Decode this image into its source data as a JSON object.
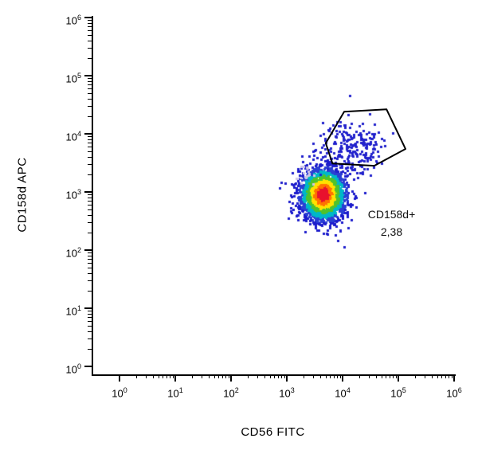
{
  "chart_data": {
    "type": "scatter",
    "subtype": "flow-cytometry-density-plot",
    "title": "",
    "xlabel": "CD56 FITC",
    "ylabel": "CD158d APC",
    "x_axis": {
      "scale": "log10",
      "min_exp": 0,
      "max_exp": 6,
      "tick_base": "10",
      "major_exponents": [
        0,
        1,
        2,
        3,
        4,
        5,
        6
      ],
      "minor_multiples": [
        2,
        3,
        4,
        5,
        6,
        7,
        8,
        9
      ]
    },
    "y_axis": {
      "scale": "log10",
      "min_exp": 0,
      "max_exp": 6,
      "tick_base": "10",
      "major_exponents": [
        0,
        1,
        2,
        3,
        4,
        5,
        6
      ],
      "minor_multiples": [
        2,
        3,
        4,
        5,
        6,
        7,
        8,
        9
      ]
    },
    "populations": [
      {
        "name": "NK-cells-main",
        "n": 2600,
        "center_log10": [
          3.62,
          2.96
        ],
        "sigma_log10": [
          0.2,
          0.22
        ],
        "color_mode": "density"
      },
      {
        "name": "CD158d-positive-cloud",
        "n": 230,
        "center_log10": [
          4.15,
          3.75
        ],
        "sigma_log10": [
          0.28,
          0.24
        ],
        "color_mode": "fixed",
        "color": "#2222cc"
      },
      {
        "name": "pale-outliers",
        "n": 16,
        "center_log10": [
          3.35,
          3.28
        ],
        "sigma_log10": [
          0.1,
          0.1
        ],
        "color_mode": "fixed",
        "color": "#cfc6e8"
      }
    ],
    "density_color_scale": [
      {
        "r": 0.55,
        "color": "#e8112d"
      },
      {
        "r": 0.85,
        "color": "#ff7300"
      },
      {
        "r": 1.15,
        "color": "#ffe100"
      },
      {
        "r": 1.5,
        "color": "#4fc22b"
      },
      {
        "r": 1.85,
        "color": "#00b7c8"
      },
      {
        "r": 2.25,
        "color": "#2a3fd4"
      },
      {
        "r": 99,
        "color": "#1c1ccc"
      }
    ],
    "gate": {
      "label": "CD158d+",
      "value": "2,38",
      "polygon_log10": [
        [
          3.67,
          3.84
        ],
        [
          4.0,
          4.38
        ],
        [
          4.76,
          4.42
        ],
        [
          5.1,
          3.74
        ],
        [
          4.54,
          3.45
        ],
        [
          3.79,
          3.49
        ]
      ],
      "label_pos_log10": [
        4.85,
        2.62
      ],
      "value_pos_log10": [
        4.85,
        2.32
      ]
    }
  }
}
